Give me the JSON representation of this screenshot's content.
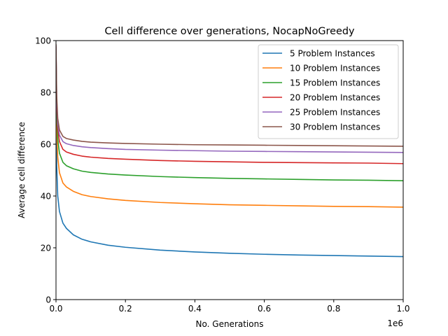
{
  "chart_data": {
    "type": "line",
    "title": "Cell difference over generations, NocapNoGreedy",
    "xlabel": "No. Generations",
    "ylabel": "Average cell difference",
    "x_offset_label": "1e6",
    "x_scale": 1000000,
    "xlim": [
      0,
      1000000
    ],
    "ylim": [
      0,
      100
    ],
    "x_ticks": [
      0,
      200000,
      400000,
      600000,
      800000,
      1000000
    ],
    "x_tick_labels": [
      "0.0",
      "0.2",
      "0.4",
      "0.6",
      "0.8",
      "1.0"
    ],
    "y_ticks": [
      0,
      20,
      40,
      60,
      80,
      100
    ],
    "y_tick_labels": [
      "0",
      "20",
      "40",
      "60",
      "80",
      "100"
    ],
    "grid": false,
    "legend_position": "top-right",
    "x": [
      0,
      2000,
      5000,
      10000,
      20000,
      30000,
      50000,
      75000,
      100000,
      150000,
      200000,
      300000,
      400000,
      500000,
      600000,
      700000,
      800000,
      900000,
      1000000
    ],
    "series": [
      {
        "name": "5 Problem Instances",
        "color": "#1f77b4",
        "values": [
          95,
          52,
          40,
          34,
          29.5,
          27.5,
          25,
          23.3,
          22.3,
          21,
          20.2,
          19.1,
          18.4,
          17.9,
          17.5,
          17.2,
          17.0,
          16.8,
          16.6
        ]
      },
      {
        "name": "10 Problem Instances",
        "color": "#ff7f0e",
        "values": [
          96,
          66,
          55,
          49,
          45,
          43.5,
          41.8,
          40.5,
          39.8,
          38.9,
          38.3,
          37.5,
          37.0,
          36.6,
          36.4,
          36.2,
          36.0,
          35.9,
          35.7
        ]
      },
      {
        "name": "15 Problem Instances",
        "color": "#2ca02c",
        "values": [
          97,
          72,
          62,
          56.5,
          53,
          51.7,
          50.5,
          49.6,
          49.1,
          48.5,
          48.1,
          47.5,
          47.1,
          46.8,
          46.6,
          46.4,
          46.2,
          46.1,
          45.9
        ]
      },
      {
        "name": "20 Problem Instances",
        "color": "#d62728",
        "values": [
          97.5,
          75,
          66,
          61,
          58,
          57,
          56.1,
          55.4,
          55.0,
          54.5,
          54.2,
          53.7,
          53.4,
          53.2,
          53.0,
          52.9,
          52.8,
          52.7,
          52.5
        ]
      },
      {
        "name": "25 Problem Instances",
        "color": "#9467bd",
        "values": [
          98,
          77,
          68,
          63.5,
          61,
          60.2,
          59.5,
          59.0,
          58.7,
          58.3,
          58.0,
          57.7,
          57.5,
          57.3,
          57.2,
          57.1,
          57.0,
          56.9,
          56.8
        ]
      },
      {
        "name": "30 Problem Instances",
        "color": "#8c564b",
        "values": [
          98.5,
          79,
          70,
          65.5,
          63,
          62.2,
          61.6,
          61.1,
          60.8,
          60.5,
          60.3,
          60.0,
          59.8,
          59.7,
          59.6,
          59.5,
          59.4,
          59.3,
          59.2
        ]
      }
    ]
  }
}
